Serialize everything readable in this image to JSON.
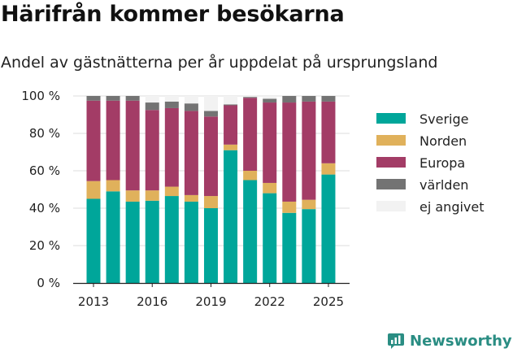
{
  "chart_data": {
    "type": "bar",
    "stacked": true,
    "title": "Härifrån kommer besökarna",
    "subtitle": "Andel av gästnätterna per år uppdelat på ursprungsland",
    "x": [
      2013,
      2014,
      2015,
      2016,
      2017,
      2018,
      2019,
      2020,
      2021,
      2022,
      2023,
      2024,
      2025
    ],
    "x_tick_labels": [
      "2013",
      "2016",
      "2019",
      "2022",
      "2025"
    ],
    "y_tick_labels": [
      "0 %",
      "20 %",
      "40 %",
      "60 %",
      "80 %",
      "100 %"
    ],
    "ylim": [
      0,
      100
    ],
    "grid": true,
    "legend_position": "right",
    "series": [
      {
        "name": "Sverige",
        "color": "#00a69a",
        "values": [
          45,
          49,
          43.5,
          44,
          46.5,
          43.5,
          40,
          71,
          55,
          48,
          37.5,
          39.5,
          58
        ]
      },
      {
        "name": "Norden",
        "color": "#e0b15b",
        "values": [
          9.5,
          6,
          6,
          5.5,
          5,
          3.5,
          6.5,
          3,
          5,
          5.5,
          6,
          5,
          6
        ]
      },
      {
        "name": "Europa",
        "color": "#a33c66",
        "values": [
          43,
          42.5,
          48,
          43,
          42,
          45,
          42.5,
          21,
          39,
          43,
          53,
          52.5,
          33
        ]
      },
      {
        "name": "världen",
        "color": "#737373",
        "values": [
          2.5,
          2.5,
          2.5,
          4,
          3.5,
          4,
          3,
          0.5,
          0.5,
          2,
          3.5,
          3,
          3
        ]
      },
      {
        "name": "ej angivet",
        "color": "#f2f2f2",
        "values": [
          0,
          0,
          0,
          3.5,
          3,
          4,
          8,
          4.5,
          0.5,
          1.5,
          0,
          0,
          0
        ]
      }
    ]
  },
  "brand": {
    "name": "Newsworthy",
    "color": "#2a8d83"
  }
}
